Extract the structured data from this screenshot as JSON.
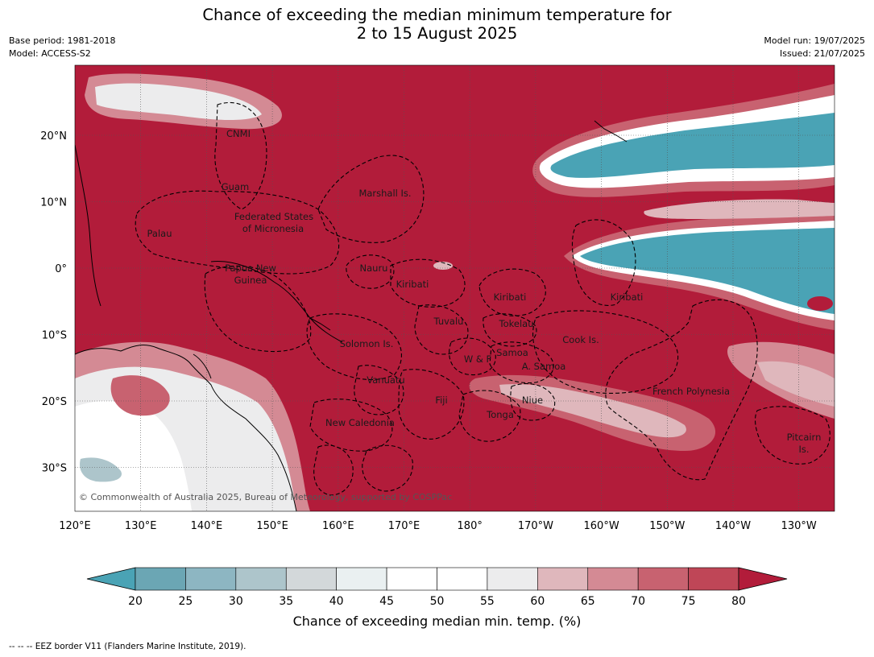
{
  "header": {
    "title_line1": "Chance of exceeding the median minimum temperature for",
    "title_line2": "2 to 15 August 2025",
    "base_period": "Base period: 1981-2018",
    "model": "Model: ACCESS-S2",
    "model_run": "Model run: 19/07/2025",
    "issued": "Issued: 21/07/2025"
  },
  "map": {
    "lon_ticks": [
      "120°E",
      "130°E",
      "140°E",
      "150°E",
      "160°E",
      "170°E",
      "180°",
      "170°W",
      "160°W",
      "150°W",
      "140°W",
      "130°W"
    ],
    "lat_ticks": [
      "20°N",
      "10°N",
      "0°",
      "10°S",
      "20°S",
      "30°S"
    ],
    "copyright": "© Commonwealth of Australia 2025, Bureau of Meteorology, supported by COSPPac",
    "region_labels": [
      {
        "id": "cnmi",
        "text": "CNMI"
      },
      {
        "id": "guam",
        "text": "Guam"
      },
      {
        "id": "marshall",
        "text": "Marshall Is."
      },
      {
        "id": "fsm1",
        "text": "Federated States"
      },
      {
        "id": "fsm2",
        "text": "of Micronesia"
      },
      {
        "id": "palau",
        "text": "Palau"
      },
      {
        "id": "nauru",
        "text": "Nauru"
      },
      {
        "id": "png1",
        "text": "Papua New"
      },
      {
        "id": "png2",
        "text": "Guinea"
      },
      {
        "id": "kiribati1",
        "text": "Kiribati"
      },
      {
        "id": "kiribati2",
        "text": "Kiribati"
      },
      {
        "id": "kiribati3",
        "text": "Kiribati"
      },
      {
        "id": "tuvalu",
        "text": "Tuvalu"
      },
      {
        "id": "tokelau",
        "text": "Tokelau"
      },
      {
        "id": "cook",
        "text": "Cook Is."
      },
      {
        "id": "solomon",
        "text": "Solomon Is."
      },
      {
        "id": "wf",
        "text": "W & F"
      },
      {
        "id": "samoa",
        "text": "Samoa"
      },
      {
        "id": "asamoa",
        "text": "A. Samoa"
      },
      {
        "id": "vanuatu",
        "text": "Vanuatu"
      },
      {
        "id": "fiji",
        "text": "Fiji"
      },
      {
        "id": "niue",
        "text": "Niue"
      },
      {
        "id": "fp",
        "text": "French Polynesia"
      },
      {
        "id": "tonga",
        "text": "Tonga"
      },
      {
        "id": "nc",
        "text": "New Caledonia"
      },
      {
        "id": "pitcairn1",
        "text": "Pitcairn"
      },
      {
        "id": "pitcairn2",
        "text": "Is."
      }
    ]
  },
  "colorbar": {
    "title": "Chance of exceeding median min. temp. (%)",
    "ticks": [
      "20",
      "25",
      "30",
      "35",
      "40",
      "45",
      "50",
      "55",
      "60",
      "65",
      "70",
      "75",
      "80"
    ],
    "colors": [
      "#6ba6b4",
      "#8db6c2",
      "#adc5cb",
      "#d3d8da",
      "#eaf0f1",
      "#ffffff",
      "#ffffff",
      "#ececed",
      "#dfb7bc",
      "#d48a94",
      "#c86270",
      "#bf4657"
    ],
    "under_color": "#4aa3b5",
    "over_color": "#b21c3a"
  },
  "footnote": "--  --  -- EEZ border V11 (Flanders Marine Institute, 2019)."
}
